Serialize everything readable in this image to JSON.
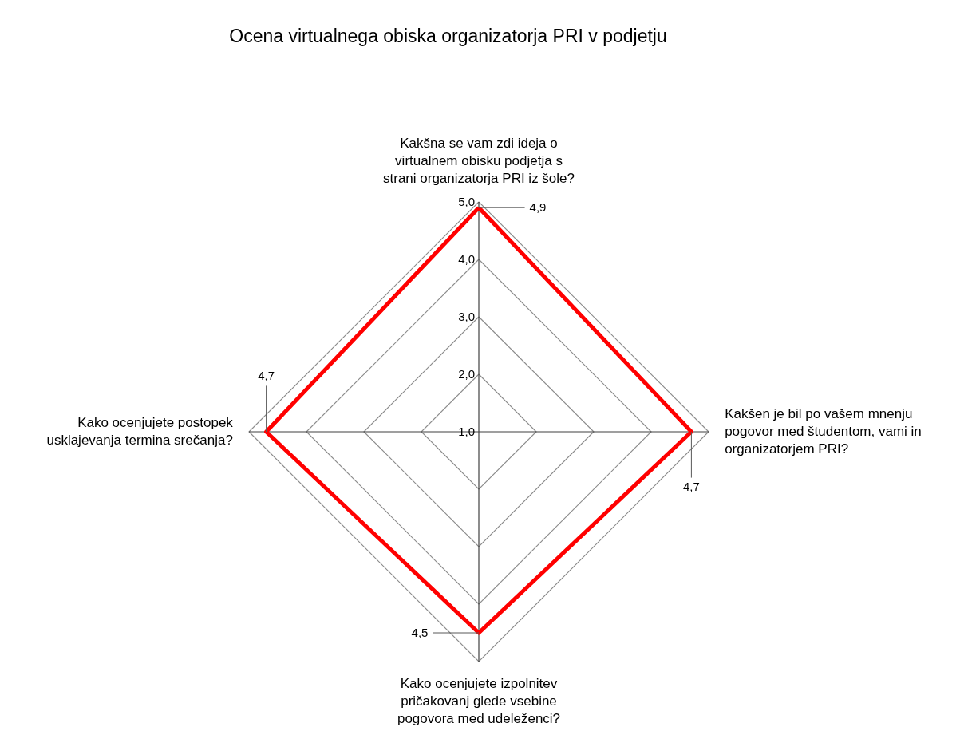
{
  "chart_data": {
    "type": "radar",
    "title": "Ocena virtualnega obiska organizatorja PRI v podjetju",
    "categories": [
      "Kakšna se vam zdi ideja o virtualnem obisku podjetja s strani organizatorja PRI iz šole?",
      "Kakšen je bil po vašem mnenju pogovor med študentom, vami in organizatorjem PRI?",
      "Kako ocenjujete izpolnitev pričakovanj glede vsebine pogovora med udeleženci?",
      "Kako ocenjujete postopek usklajevanja termina srečanja?"
    ],
    "series": [
      {
        "color": "#ff0000",
        "values": [
          4.9,
          4.7,
          4.5,
          4.7
        ]
      }
    ],
    "value_labels": [
      "4,9",
      "4,7",
      "4,5",
      "4,7"
    ],
    "ylim": [
      1,
      5
    ],
    "yticks": [
      {
        "value": 1,
        "label": "1,0"
      },
      {
        "value": 2,
        "label": "2,0"
      },
      {
        "value": 3,
        "label": "3,0"
      },
      {
        "value": 4,
        "label": "4,0"
      },
      {
        "value": 5,
        "label": "5,0"
      }
    ],
    "grid": true
  }
}
